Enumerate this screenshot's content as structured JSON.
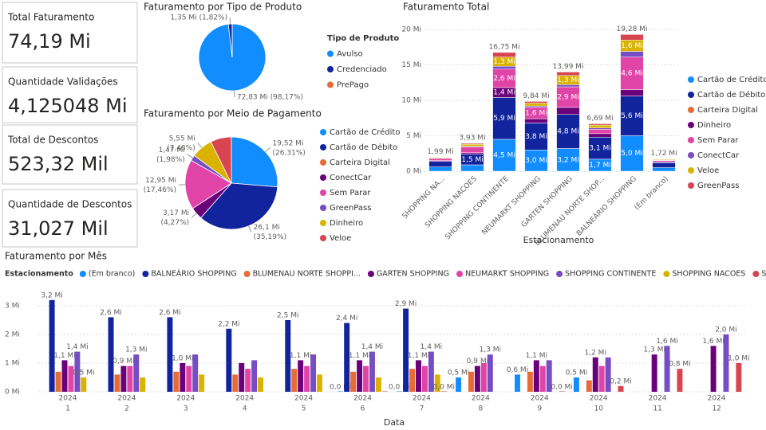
{
  "cards": [
    {
      "title": "Total Faturamento",
      "value": "74,19 Mi"
    },
    {
      "title": "Quantidade Validações",
      "value": "4,125048 Mi"
    },
    {
      "title": "Total de Descontos",
      "value": "523,32 Mil"
    },
    {
      "title": "Quantidade de Descontos",
      "value": "31,027 Mil"
    }
  ],
  "chart_data": [
    {
      "type": "pie",
      "title": "Faturamento por Tipo de Produto",
      "legend_title": "Tipo de Produto",
      "categories": [
        "Avulso",
        "Credenciado",
        "PrePago"
      ],
      "values": [
        72.83,
        1.35,
        0.01
      ],
      "value_labels": [
        "72,83 Mi (98,17%)",
        "1,35 Mi (1,82%)",
        null
      ],
      "colors": [
        "#118DFF",
        "#12239E",
        "#E66C37"
      ]
    },
    {
      "type": "pie",
      "title": "Faturamento por Meio de Pagamento",
      "categories": [
        "Cartão de Crédito",
        "Cartão de Débito",
        "Carteira Digital",
        "ConectCar",
        "Sem Parar",
        "GreenPass",
        "Dinheiro",
        "Veloe"
      ],
      "values": [
        19.52,
        26.1,
        0.0,
        3.17,
        12.95,
        1.47,
        5.55,
        5.43
      ],
      "value_labels": [
        "19,52 Mi (26,31%)",
        "26,1 Mi (35,19%)",
        null,
        "3,17 Mi (4,27%)",
        "12,95 Mi (17,46%)",
        "1,47 Mi (1,98%)",
        "5,55 Mi (7,48%)",
        null
      ],
      "colors": [
        "#118DFF",
        "#12239E",
        "#E66C37",
        "#6B007B",
        "#E044A7",
        "#744EC2",
        "#D9B300",
        "#D64550"
      ]
    },
    {
      "type": "stacked_bar",
      "title": "Faturamento Total",
      "x_label": "Estacionamento",
      "categories": [
        "SHOPPING NA...",
        "SHOPPING NACOES",
        "SHOPPING CONTINENTE",
        "NEUMARKT SHOPPING",
        "GARTEN SHOPPING",
        "BLUMENAU NORTE SHOP...",
        "BALNEÁRIO SHOPPING",
        "(Em branco)"
      ],
      "ylim": [
        0,
        21
      ],
      "yticks": [
        {
          "value": 0,
          "label": "0 Mi"
        },
        {
          "value": 5,
          "label": "5 Mi"
        },
        {
          "value": 10,
          "label": "10 Mi"
        },
        {
          "value": 15,
          "label": "15 Mi"
        },
        {
          "value": 20,
          "label": "20 Mi"
        }
      ],
      "totals": [
        1.99,
        3.93,
        16.75,
        9.84,
        13.99,
        6.69,
        19.28,
        1.72
      ],
      "total_labels": [
        "1,99 Mi",
        "3,93 Mi",
        "16,75 Mi",
        "9,84 Mi",
        "13,99 Mi",
        "6,69 Mi",
        "19,28 Mi",
        "1,72 Mi"
      ],
      "series": [
        {
          "name": "Cartão de Crédito",
          "color": "#118DFF",
          "values": [
            0.6,
            0.9,
            4.5,
            3.0,
            3.2,
            1.7,
            5.0,
            0.5
          ],
          "value_labels": [
            null,
            null,
            "4,5 Mi",
            "3,0 Mi",
            "3,2 Mi",
            "1,7 Mi",
            "5,0 Mi",
            null
          ]
        },
        {
          "name": "Cartão de Débito",
          "color": "#12239E",
          "values": [
            0.8,
            1.5,
            5.9,
            3.8,
            4.8,
            3.1,
            5.6,
            0.7
          ],
          "value_labels": [
            null,
            "1,5 Mi",
            "5,9 Mi",
            "3,8 Mi",
            "4,8 Mi",
            "3,1 Mi",
            "5,6 Mi",
            null
          ]
        },
        {
          "name": "Carteira Digital",
          "color": "#E66C37",
          "values": [
            0,
            0,
            0,
            0,
            0,
            0,
            0,
            0
          ],
          "value_labels": [
            null,
            null,
            null,
            null,
            null,
            null,
            null,
            null
          ]
        },
        {
          "name": "Dinheiro",
          "color": "#6B007B",
          "values": [
            0.1,
            0.2,
            1.4,
            0.6,
            1.0,
            0.5,
            0.9,
            0.1
          ],
          "value_labels": [
            null,
            null,
            "1,4 Mi",
            null,
            null,
            null,
            null,
            null
          ]
        },
        {
          "name": "Sem Parar",
          "color": "#E044A7",
          "values": [
            0.3,
            0.8,
            2.6,
            1.6,
            2.9,
            0.6,
            4.6,
            0.2
          ],
          "value_labels": [
            null,
            null,
            "2,6 Mi",
            "1,6 Mi",
            "2,9 Mi",
            null,
            "4,6 Mi",
            null
          ]
        },
        {
          "name": "ConectCar",
          "color": "#744EC2",
          "values": [
            0.05,
            0.1,
            0.4,
            0.2,
            0.3,
            0.2,
            0.8,
            0.05
          ],
          "value_labels": [
            null,
            null,
            null,
            null,
            null,
            null,
            null,
            null
          ]
        },
        {
          "name": "Veloe",
          "color": "#D9B300",
          "values": [
            0.1,
            0.3,
            1.3,
            0.4,
            1.3,
            0.4,
            1.6,
            0.1
          ],
          "value_labels": [
            null,
            null,
            "1,3 Mi",
            null,
            "1,3 Mi",
            null,
            "1,6 Mi",
            null
          ]
        },
        {
          "name": "GreenPass",
          "color": "#D64550",
          "values": [
            0.04,
            0.13,
            0.65,
            0.24,
            0.49,
            0.19,
            0.78,
            0.07
          ],
          "value_labels": [
            null,
            null,
            null,
            null,
            null,
            null,
            null,
            null
          ]
        }
      ]
    },
    {
      "type": "grouped_bar",
      "title": "Faturamento por Mês",
      "legend_title": "Estacionamento",
      "x_label": "Data",
      "year": "2024",
      "categories": [
        "1",
        "2",
        "3",
        "4",
        "5",
        "6",
        "7",
        "8",
        "9",
        "10",
        "11",
        "12"
      ],
      "ylim": [
        0,
        3.1
      ],
      "yticks": [
        {
          "value": 0,
          "label": "0 Mi"
        },
        {
          "value": 1,
          "label": "1 Mi"
        },
        {
          "value": 2,
          "label": "2 Mi"
        },
        {
          "value": 3,
          "label": "3 Mi"
        }
      ],
      "series": [
        {
          "name": "(Em branco)",
          "color": "#118DFF",
          "values": [
            null,
            null,
            null,
            null,
            null,
            0.0,
            0.0,
            0.5,
            0.6,
            0.5,
            null,
            null
          ],
          "value_labels": [
            null,
            null,
            null,
            null,
            null,
            "0,0 Mi",
            "0,0 Mi",
            "0,5 Mi",
            "0,6 Mi",
            "0,5 Mi",
            null,
            null
          ]
        },
        {
          "name": "BALNEÁRIO SHOPPING",
          "color": "#12239E",
          "values": [
            3.2,
            2.6,
            2.6,
            2.2,
            2.5,
            2.4,
            2.9,
            null,
            null,
            null,
            null,
            null
          ],
          "value_labels": [
            "3,2 Mi",
            "2,6 Mi",
            "2,6 Mi",
            "2,2 Mi",
            "2,5 Mi",
            "2,4 Mi",
            "2,9 Mi",
            null,
            null,
            null,
            null,
            null
          ]
        },
        {
          "name": "BLUMENAU NORTE SHOPPI...",
          "color": "#E66C37",
          "values": [
            0.7,
            0.6,
            0.7,
            0.6,
            0.8,
            0.7,
            0.8,
            0.7,
            0.7,
            0.4,
            null,
            null
          ],
          "value_labels": [
            null,
            null,
            null,
            null,
            null,
            null,
            null,
            null,
            null,
            null,
            null,
            null
          ]
        },
        {
          "name": "GARTEN SHOPPING",
          "color": "#6B007B",
          "values": [
            1.1,
            0.9,
            1.0,
            1.0,
            1.1,
            1.1,
            1.1,
            0.9,
            1.1,
            1.2,
            1.3,
            1.6
          ],
          "value_labels": [
            "1,1 Mi",
            "0,9 Mi",
            "1,0 Mi",
            null,
            "1,1 Mi",
            "1,1 Mi",
            "1,1 Mi",
            "0,9 Mi",
            "1,1 Mi",
            "1,2 Mi",
            "1,3 Mi",
            "1,6 Mi"
          ]
        },
        {
          "name": "NEUMARKT SHOPPING",
          "color": "#E044A7",
          "values": [
            0.9,
            0.9,
            0.9,
            0.8,
            0.9,
            0.9,
            0.9,
            1.0,
            0.9,
            0.9,
            null,
            null
          ],
          "value_labels": [
            null,
            null,
            null,
            null,
            null,
            null,
            null,
            null,
            null,
            null,
            null,
            null
          ]
        },
        {
          "name": "SHOPPING CONTINENTE",
          "color": "#744EC2",
          "values": [
            1.4,
            1.3,
            1.3,
            1.1,
            1.3,
            1.4,
            1.4,
            1.3,
            1.1,
            1.2,
            1.6,
            2.0
          ],
          "value_labels": [
            "1,4 Mi",
            "1,3 Mi",
            null,
            null,
            null,
            "1,4 Mi",
            "1,4 Mi",
            "1,3 Mi",
            null,
            null,
            "1,6 Mi",
            "2,0 Mi"
          ]
        },
        {
          "name": "SHOPPING NACOES",
          "color": "#D9B300",
          "values": [
            0.5,
            0.5,
            0.6,
            0.5,
            0.6,
            0.5,
            0.6,
            null,
            null,
            null,
            null,
            null
          ],
          "value_labels": [
            "0,5 Mi",
            null,
            null,
            null,
            null,
            null,
            null,
            null,
            null,
            null,
            null,
            null
          ]
        },
        {
          "name": "SHOPPING NAÇÕES",
          "color": "#D64550",
          "values": [
            null,
            null,
            null,
            null,
            null,
            0.0,
            0.0,
            null,
            0.0,
            0.2,
            0.8,
            1.0
          ],
          "value_labels": [
            null,
            null,
            null,
            null,
            null,
            null,
            "0,0 Mi",
            null,
            "0,0 Mi",
            "0,2 Mi",
            "0,8 Mi",
            "1,0 Mi"
          ]
        }
      ]
    }
  ]
}
